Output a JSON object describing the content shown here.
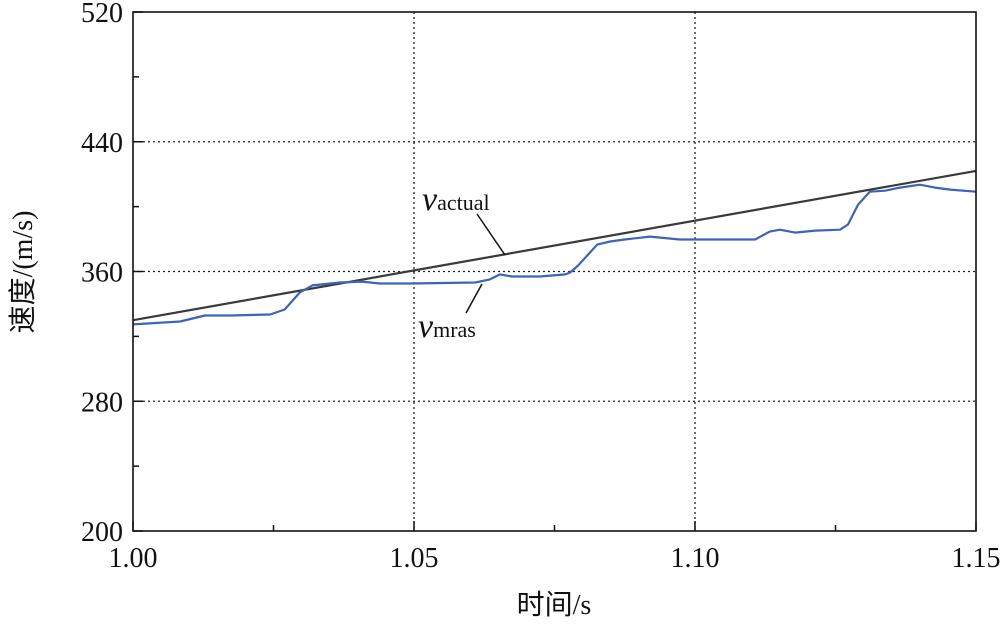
{
  "chart_data": {
    "type": "line",
    "xlabel": "时间/s",
    "ylabel": "速度/(m/s)",
    "xlim": [
      1.0,
      1.15
    ],
    "ylim": [
      200,
      520
    ],
    "xticks": [
      "1.00",
      "1.05",
      "1.10",
      "1.15"
    ],
    "yticks": [
      "200",
      "280",
      "360",
      "440",
      "520"
    ],
    "grid": "dotted at major ticks",
    "colors": {
      "actual": "#3a3a3a",
      "mras": "#3f63b8"
    },
    "series": [
      {
        "name": "v_actual",
        "label_main": "v",
        "label_sub": "actual",
        "x": [
          1.0,
          1.15
        ],
        "y": [
          330,
          422
        ]
      },
      {
        "name": "v_mras",
        "label_main": "v",
        "label_sub": "mras",
        "x": [
          1.0,
          1.0084,
          1.0128,
          1.0173,
          1.0244,
          1.027,
          1.0297,
          1.0319,
          1.0368,
          1.0407,
          1.0439,
          1.0493,
          1.0609,
          1.0635,
          1.0653,
          1.0674,
          1.0724,
          1.0769,
          1.0778,
          1.0792,
          1.0826,
          1.0849,
          1.0875,
          1.092,
          1.0973,
          1.1044,
          1.1107,
          1.1133,
          1.1151,
          1.1178,
          1.1214,
          1.1258,
          1.1272,
          1.129,
          1.1311,
          1.1338,
          1.1365,
          1.14,
          1.1427,
          1.1454,
          1.15
        ],
        "y": [
          327.4,
          329.2,
          332.9,
          332.9,
          333.5,
          336.6,
          347.1,
          351.4,
          353.2,
          353.8,
          352.6,
          352.6,
          353.2,
          355.1,
          358.2,
          356.9,
          356.9,
          358.2,
          359.4,
          363.7,
          376.6,
          378.5,
          379.7,
          381.5,
          379.7,
          379.7,
          379.7,
          384.6,
          385.8,
          384.0,
          385.2,
          385.8,
          388.9,
          401.2,
          409.2,
          409.8,
          411.7,
          413.5,
          411.7,
          410.5,
          409.2
        ]
      }
    ]
  }
}
